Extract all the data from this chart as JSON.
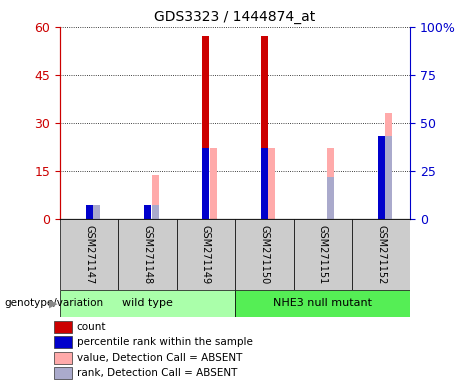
{
  "title": "GDS3323 / 1444874_at",
  "samples": [
    "GSM271147",
    "GSM271148",
    "GSM271149",
    "GSM271150",
    "GSM271151",
    "GSM271152"
  ],
  "count_values": [
    0,
    0,
    57,
    57,
    0,
    0
  ],
  "percentile_rank_pct": [
    7,
    7,
    37,
    37,
    0,
    43
  ],
  "value_absent_pct": [
    7,
    23,
    37,
    37,
    37,
    55
  ],
  "rank_absent_pct": [
    7,
    7,
    0,
    0,
    22,
    43
  ],
  "left_ylim": [
    0,
    60
  ],
  "right_ylim": [
    0,
    100
  ],
  "left_yticks": [
    0,
    15,
    30,
    45,
    60
  ],
  "right_yticks": [
    0,
    25,
    50,
    75,
    100
  ],
  "right_yticklabels": [
    "0",
    "25",
    "50",
    "75",
    "100%"
  ],
  "color_count": "#cc0000",
  "color_rank": "#0000cc",
  "color_value_absent": "#ffaaaa",
  "color_rank_absent": "#aaaacc",
  "groups": [
    {
      "label": "wild type",
      "start": 0,
      "end": 3,
      "color": "#aaffaa"
    },
    {
      "label": "NHE3 null mutant",
      "start": 3,
      "end": 6,
      "color": "#55ee55"
    }
  ],
  "genotype_label": "genotype/variation",
  "legend_items": [
    {
      "color": "#cc0000",
      "label": "count"
    },
    {
      "color": "#0000cc",
      "label": "percentile rank within the sample"
    },
    {
      "color": "#ffaaaa",
      "label": "value, Detection Call = ABSENT"
    },
    {
      "color": "#aaaacc",
      "label": "rank, Detection Call = ABSENT"
    }
  ],
  "left_axis_color": "#cc0000",
  "right_axis_color": "#0000cc",
  "bg_color": "#ffffff"
}
